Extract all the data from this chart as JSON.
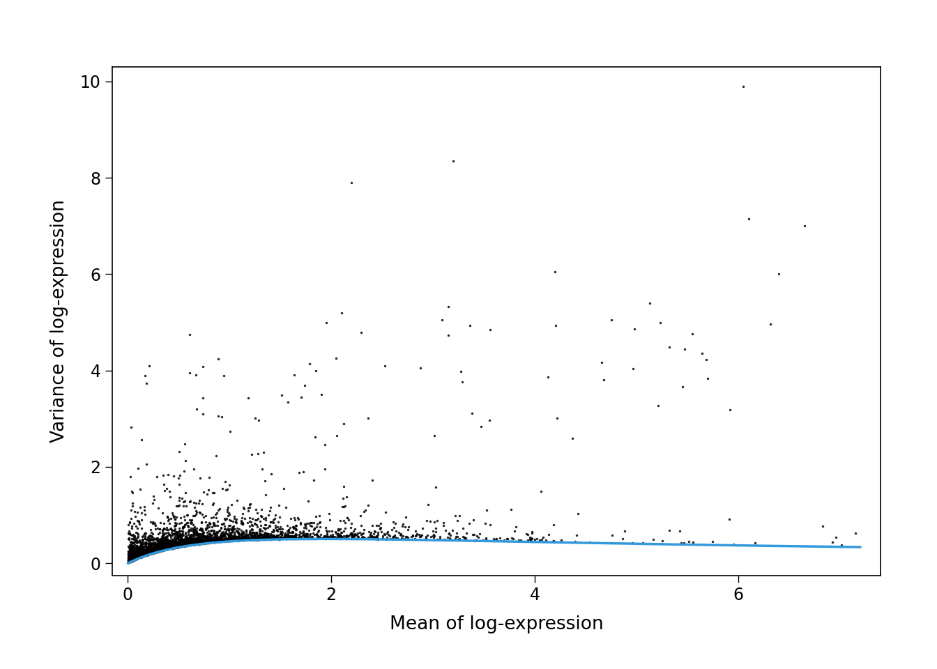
{
  "xlabel": "Mean of log-expression",
  "ylabel": "Variance of log-expression",
  "xlim": [
    -0.15,
    7.4
  ],
  "ylim": [
    -0.25,
    10.3
  ],
  "xticks": [
    0,
    2,
    4,
    6
  ],
  "yticks": [
    0,
    2,
    4,
    6,
    8,
    10
  ],
  "point_color": "#000000",
  "point_size": 6,
  "point_alpha": 0.85,
  "curve_color": "#3399dd",
  "curve_lw": 2.5,
  "background_color": "#ffffff",
  "seed": 42,
  "n_points": 4000,
  "curve_a": 1.05,
  "curve_b": 0.52
}
